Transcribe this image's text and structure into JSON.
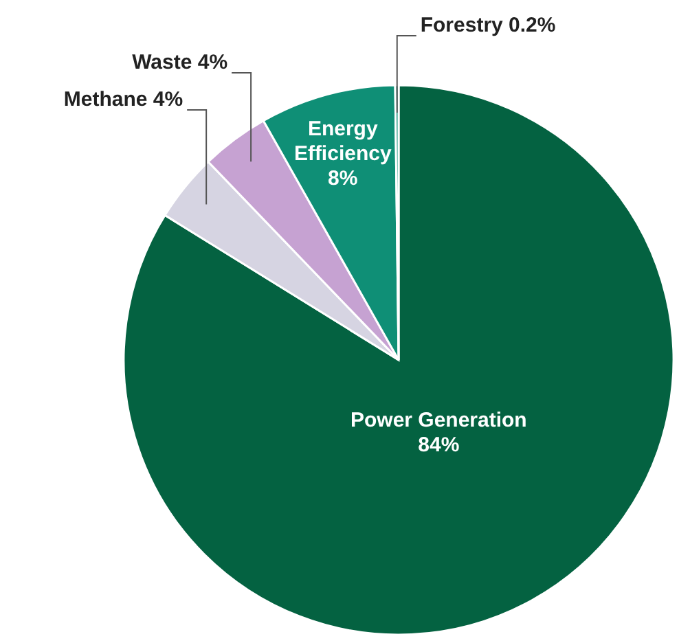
{
  "chart_data": {
    "type": "pie",
    "categories": [
      "Power Generation",
      "Methane",
      "Waste",
      "Energy Efficiency",
      "Forestry"
    ],
    "values": [
      84,
      4,
      4,
      8,
      0.2
    ],
    "value_labels": [
      "84%",
      "4%",
      "4%",
      "8%",
      "0.2%"
    ],
    "colors": [
      "#046241",
      "#d6d4e2",
      "#c6a2d2",
      "#0f8f76",
      "#0f8f76"
    ]
  }
}
